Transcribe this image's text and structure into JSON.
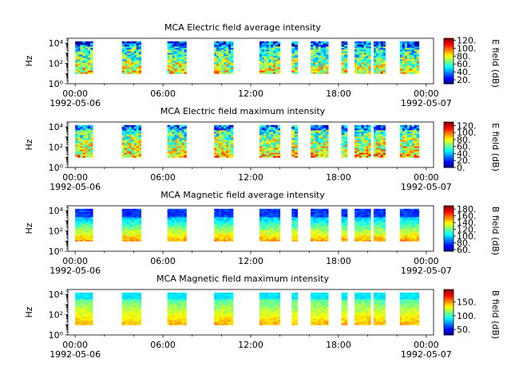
{
  "time_axis": {
    "range_hours": [
      -0.5,
      24.5
    ],
    "ticks": [
      {
        "hour": 0,
        "label": "00:00",
        "date": "1992-05-06"
      },
      {
        "hour": 6,
        "label": "06:00",
        "date": ""
      },
      {
        "hour": 12,
        "label": "12:00",
        "date": ""
      },
      {
        "hour": 18,
        "label": "18:00",
        "date": ""
      },
      {
        "hour": 24,
        "label": "00:00",
        "date": "1992-05-07"
      }
    ]
  },
  "chart_data": [
    {
      "type": "heatmap",
      "title": "MCA  Electric field average intensity",
      "ylabel": "Hz",
      "yscale": "log",
      "ylim": [
        1,
        30000
      ],
      "yticks": [
        1,
        100,
        10000
      ],
      "ytick_labels": [
        "10⁰",
        "10²",
        "10⁴"
      ],
      "colorbar": {
        "label": "E field (dB)",
        "range": [
          10,
          125
        ],
        "ticks": [
          20,
          40,
          60,
          80,
          100,
          120
        ],
        "tick_labels": [
          "20.",
          "40.",
          "60.",
          "80.",
          "100.",
          "120."
        ]
      },
      "style": "electric",
      "data_intervals_hours": [
        [
          0.0,
          1.2
        ],
        [
          3.2,
          4.5
        ],
        [
          6.3,
          7.6
        ],
        [
          9.5,
          10.8
        ],
        [
          12.6,
          14.0
        ],
        [
          14.8,
          15.2
        ],
        [
          16.1,
          17.3
        ],
        [
          18.2,
          18.6
        ],
        [
          19.1,
          20.2
        ],
        [
          20.4,
          21.2
        ],
        [
          22.2,
          23.5
        ]
      ]
    },
    {
      "type": "heatmap",
      "title": "MCA  Electric field maximum intensity",
      "ylabel": "Hz",
      "yscale": "log",
      "ylim": [
        1,
        30000
      ],
      "yticks": [
        1,
        100,
        10000
      ],
      "ytick_labels": [
        "10⁰",
        "10²",
        "10⁴"
      ],
      "colorbar": {
        "label": "E field (dB)",
        "range": [
          0,
          130
        ],
        "ticks": [
          0,
          20,
          40,
          60,
          80,
          100,
          120
        ],
        "tick_labels": [
          "0.",
          "20.",
          "40.",
          "60.",
          "80.",
          "100.",
          "120."
        ]
      },
      "style": "electric",
      "data_intervals_hours": [
        [
          0.0,
          1.2
        ],
        [
          3.2,
          4.5
        ],
        [
          6.3,
          7.6
        ],
        [
          9.5,
          10.8
        ],
        [
          12.6,
          14.0
        ],
        [
          14.8,
          15.2
        ],
        [
          16.1,
          17.3
        ],
        [
          18.2,
          18.6
        ],
        [
          19.1,
          20.2
        ],
        [
          20.4,
          21.2
        ],
        [
          22.2,
          23.5
        ]
      ]
    },
    {
      "type": "heatmap",
      "title": "MCA  Magnetic field average intensity",
      "ylabel": "Hz",
      "yscale": "log",
      "ylim": [
        1,
        30000
      ],
      "yticks": [
        1,
        100,
        10000
      ],
      "ytick_labels": [
        "10⁰",
        "10²",
        "10⁴"
      ],
      "colorbar": {
        "label": "B field (dB)",
        "range": [
          55,
          190
        ],
        "ticks": [
          60,
          80,
          100,
          120,
          140,
          160,
          180
        ],
        "tick_labels": [
          "60.",
          "80.",
          "100.",
          "120.",
          "140.",
          "160.",
          "180."
        ]
      },
      "style": "magnetic",
      "data_intervals_hours": [
        [
          0.0,
          1.2
        ],
        [
          3.2,
          4.5
        ],
        [
          6.3,
          7.6
        ],
        [
          9.5,
          10.8
        ],
        [
          12.6,
          14.0
        ],
        [
          14.8,
          15.2
        ],
        [
          16.1,
          17.3
        ],
        [
          18.2,
          18.6
        ],
        [
          19.1,
          20.2
        ],
        [
          20.4,
          21.2
        ],
        [
          22.2,
          23.5
        ]
      ]
    },
    {
      "type": "heatmap",
      "title": "MCA  Magnetic field maximum intensity",
      "ylabel": "Hz",
      "yscale": "log",
      "ylim": [
        1,
        30000
      ],
      "yticks": [
        1,
        100,
        10000
      ],
      "ytick_labels": [
        "10⁰",
        "10²",
        "10⁴"
      ],
      "colorbar": {
        "label": "B field (dB)",
        "range": [
          30,
          195
        ],
        "ticks": [
          50,
          100,
          150
        ],
        "tick_labels": [
          "50.",
          "100.",
          "150."
        ]
      },
      "style": "magnetic-max",
      "data_intervals_hours": [
        [
          0.0,
          1.2
        ],
        [
          3.2,
          4.5
        ],
        [
          6.3,
          7.6
        ],
        [
          9.5,
          10.8
        ],
        [
          12.6,
          14.0
        ],
        [
          14.8,
          15.2
        ],
        [
          16.1,
          17.3
        ],
        [
          18.2,
          18.6
        ],
        [
          19.1,
          20.2
        ],
        [
          20.4,
          21.2
        ],
        [
          22.2,
          23.5
        ]
      ]
    }
  ]
}
